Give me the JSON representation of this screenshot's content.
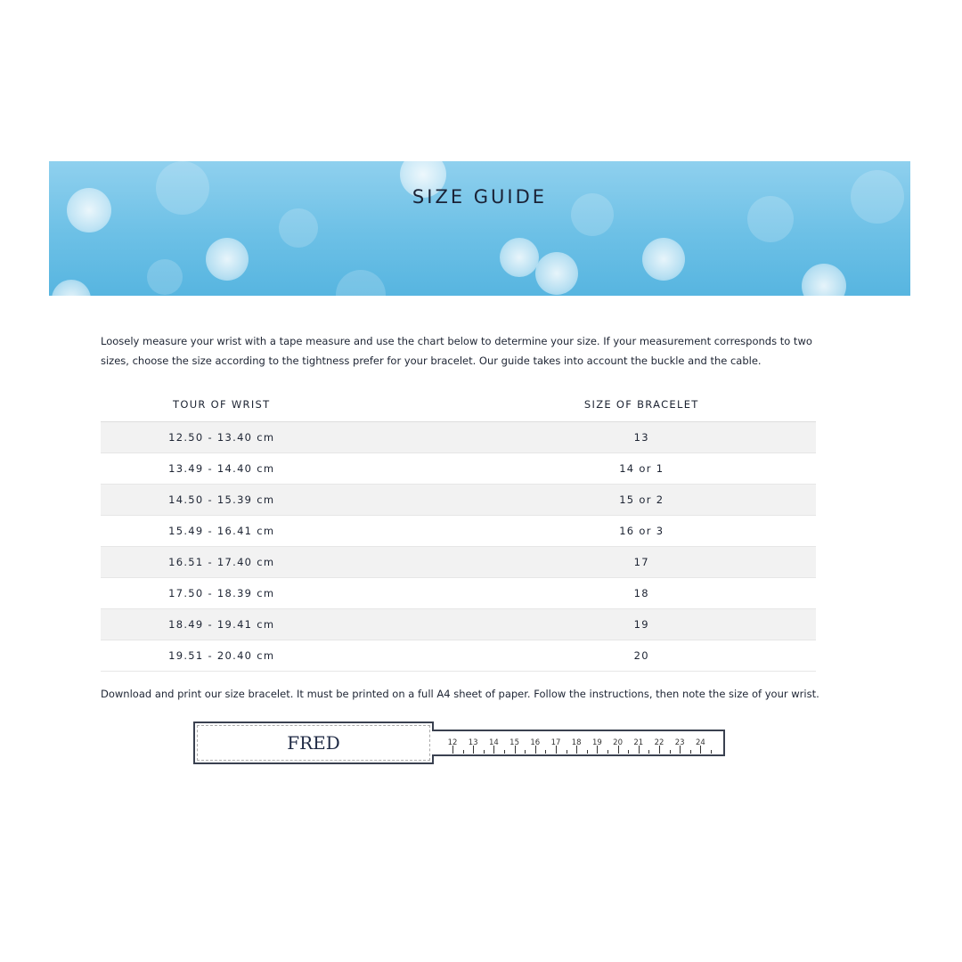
{
  "banner": {
    "title": "SIZE GUIDE"
  },
  "intro": "Loosely measure your wrist with a tape measure and use the chart below to determine your size. If your measurement corresponds to two sizes, choose the size according to the tightness prefer for your bracelet. Our guide takes into account the buckle and the cable.",
  "table": {
    "headers": [
      "TOUR OF WRIST",
      "SIZE OF BRACELET"
    ],
    "rows": [
      [
        "12.50 - 13.40 cm",
        "13"
      ],
      [
        "13.49 - 14.40 cm",
        "14 or 1"
      ],
      [
        "14.50 - 15.39 cm",
        "15 or 2"
      ],
      [
        "15.49 - 16.41 cm",
        "16 or 3"
      ],
      [
        "16.51 - 17.40 cm",
        "17"
      ],
      [
        "17.50 - 18.39 cm",
        "18"
      ],
      [
        "18.49 - 19.41 cm",
        "19"
      ],
      [
        "19.51 - 20.40 cm",
        "20"
      ]
    ]
  },
  "download_text": "Download and print our size bracelet. It must be printed on a full A4 sheet of paper. Follow the instructions, then note the size of your wrist.",
  "ruler": {
    "logo": "FRED",
    "numbers": [
      "12",
      "13",
      "14",
      "15",
      "16",
      "17",
      "18",
      "19",
      "20",
      "21",
      "22",
      "23",
      "24"
    ]
  }
}
